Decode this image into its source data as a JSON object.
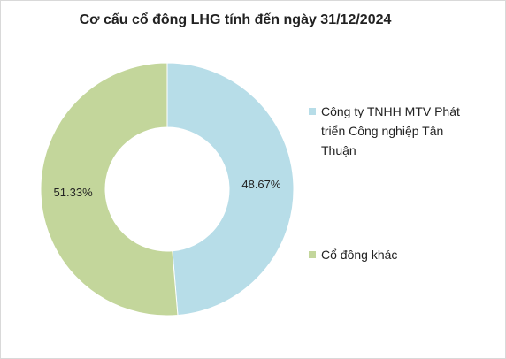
{
  "chart_data": {
    "type": "donut",
    "title": "Cơ cấu cổ đông LHG tính đến ngày 31/12/2024",
    "categories": [
      "Công ty TNHH MTV Phát triển Công nghiệp Tân Thuận",
      "Cổ đông khác"
    ],
    "values": [
      48.67,
      51.33
    ],
    "value_labels": [
      "48.67%",
      "51.33%"
    ],
    "colors": [
      "#b7dde8",
      "#c3d69b"
    ],
    "legend": "right"
  }
}
